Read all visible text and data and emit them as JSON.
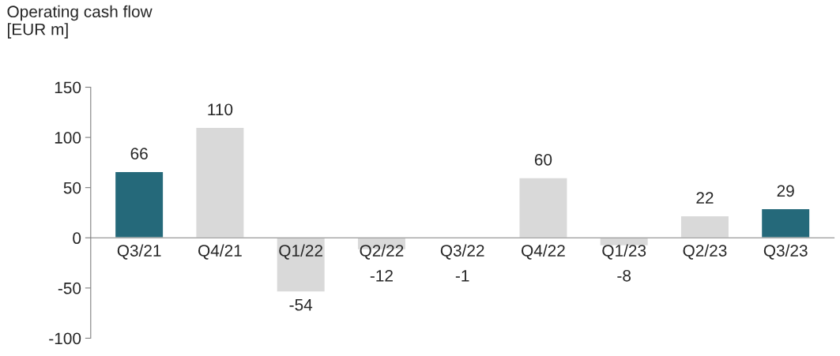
{
  "chart_data": {
    "type": "bar",
    "title": "Operating cash flow\n[EUR m]",
    "categories": [
      "Q3/21",
      "Q4/21",
      "Q1/22",
      "Q2/22",
      "Q3/22",
      "Q4/22",
      "Q1/23",
      "Q2/23",
      "Q3/23"
    ],
    "values": [
      66,
      110,
      -54,
      -12,
      -1,
      60,
      -8,
      22,
      29
    ],
    "colors": [
      "#25697a",
      "#d9d9d9",
      "#d9d9d9",
      "#d9d9d9",
      "#d9d9d9",
      "#d9d9d9",
      "#d9d9d9",
      "#d9d9d9",
      "#25697a"
    ],
    "ylim": [
      -100,
      150
    ],
    "yticks": [
      -100,
      -50,
      0,
      50,
      100,
      150
    ],
    "grid": false,
    "legend": false,
    "data_labels": true
  }
}
